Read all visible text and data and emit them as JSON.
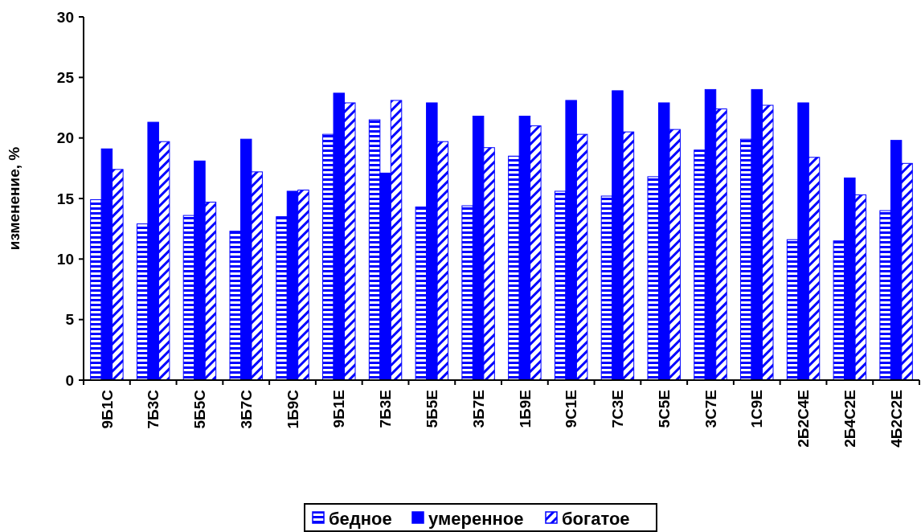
{
  "chart_data": {
    "type": "bar",
    "ylabel": "изменение, %",
    "categories": [
      "9Б1С",
      "7Б3С",
      "5Б5С",
      "3Б7С",
      "1Б9С",
      "9Б1Е",
      "7Б3Е",
      "5Б5Е",
      "3Б7Е",
      "1Б9Е",
      "9С1Е",
      "7С3Е",
      "5С5Е",
      "3С7Е",
      "1С9Е",
      "2Б2С4Е",
      "2Б4С2Е",
      "4Б2С2Е"
    ],
    "series": [
      {
        "name": "бедное",
        "color": "#0000ff",
        "values": [
          14.9,
          12.9,
          13.6,
          12.3,
          13.5,
          20.3,
          21.5,
          14.3,
          14.4,
          18.5,
          15.6,
          15.2,
          16.8,
          19.0,
          19.9,
          11.6,
          11.5,
          14.0
        ]
      },
      {
        "name": "умеренное",
        "color": "#0000ff",
        "values": [
          19.1,
          21.3,
          18.1,
          19.9,
          15.6,
          23.7,
          17.1,
          22.9,
          21.8,
          21.8,
          23.1,
          23.9,
          22.9,
          24.0,
          24.0,
          22.9,
          16.7,
          19.8
        ]
      },
      {
        "name": "богатое",
        "color": "#0000ff",
        "values": [
          17.4,
          19.7,
          14.7,
          17.2,
          15.7,
          22.9,
          23.1,
          19.7,
          19.2,
          21.0,
          20.3,
          20.5,
          20.7,
          22.4,
          22.7,
          18.4,
          15.3,
          17.9
        ]
      }
    ],
    "ylim": [
      0,
      30
    ],
    "yticks": [
      0,
      5,
      10,
      15,
      20,
      25,
      30
    ],
    "grid": false,
    "legend": "bottom"
  }
}
